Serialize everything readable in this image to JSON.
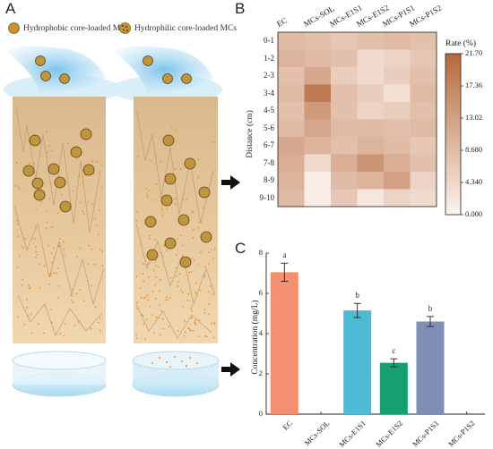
{
  "panels": {
    "a": "A",
    "b": "B",
    "c": "C"
  },
  "legend": {
    "hydrophobic": "Hydrophobic core-loaded MCs",
    "hydrophilic": "Hydrophilic core-loaded MCs"
  },
  "colors": {
    "soil": "#e3c296",
    "water": "#9fd4ef",
    "capsule": "#c0953b",
    "dots": "#ef8f2b",
    "heat_low": "#fdf3ee",
    "heat_high": "#b56a3c",
    "bar_EC": "#f4906f",
    "bar_E1S1": "#4dbad6",
    "bar_E1S2": "#16a071",
    "bar_P1S1": "#7f8eb5"
  },
  "heatmap": {
    "columns": [
      "EC",
      "MCs-SOL",
      "MCs-E1S1",
      "MCs-E1S2",
      "MCs-P1S1",
      "MCs-P1S2"
    ],
    "rows": [
      "0-1",
      "1-2",
      "2-3",
      "3-4",
      "4-5",
      "5-6",
      "6-7",
      "7-8",
      "8-9",
      "9-10"
    ],
    "ylabel": "Distance (cm)",
    "colorbar_title": "Rate (%)",
    "colorbar_ticks": [
      "21.70",
      "17.36",
      "13.02",
      "8.680",
      "4.340",
      "0.000"
    ],
    "vmin": 0,
    "vmax": 21.7,
    "values": [
      [
        9,
        8,
        7,
        8,
        9,
        8
      ],
      [
        10,
        9,
        8,
        4,
        5,
        7
      ],
      [
        8,
        12,
        6,
        4,
        6,
        8
      ],
      [
        9,
        19,
        8,
        6,
        3,
        9
      ],
      [
        8,
        14,
        8,
        5,
        6,
        8
      ],
      [
        9,
        12,
        9,
        9,
        8,
        9
      ],
      [
        12,
        10,
        8,
        10,
        9,
        7
      ],
      [
        11,
        4,
        11,
        15,
        11,
        8
      ],
      [
        10,
        1,
        9,
        10,
        13,
        5
      ],
      [
        9,
        1,
        7,
        2,
        5,
        4
      ]
    ]
  },
  "chart_data": {
    "type": "bar",
    "categories": [
      "EC",
      "MCs-SOL",
      "MCs-E1S1",
      "MCs-E1S2",
      "MCs-P1S1",
      "MCs-P1S2"
    ],
    "values": [
      7.05,
      0,
      5.15,
      2.55,
      4.6,
      0
    ],
    "errors": [
      0.45,
      0,
      0.35,
      0.2,
      0.25,
      0
    ],
    "letters": [
      "a",
      "",
      "b",
      "c",
      "b",
      ""
    ],
    "ylabel": "Concentration (mg/L)",
    "ylim": [
      0,
      8
    ],
    "yticks": [
      "0",
      "2",
      "4",
      "6",
      "8"
    ]
  }
}
